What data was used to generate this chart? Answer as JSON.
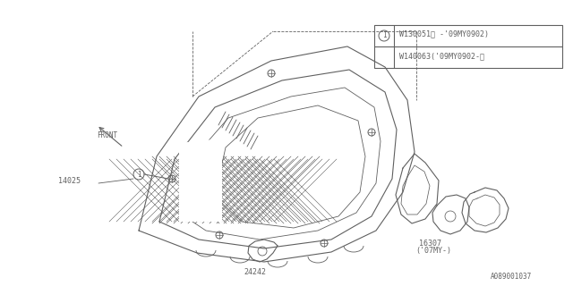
{
  "background_color": "#ffffff",
  "line_color": "#606060",
  "line_width": 0.8,
  "labels": {
    "front": "FRONT",
    "part1": "14025",
    "part2": "24242",
    "part3": "16307",
    "part3b": "('07MY-)",
    "watermark": "A089001037",
    "legend_row1": "W130051（ -'09MY0902)",
    "legend_row2": "W140063('09MY0902-）"
  }
}
